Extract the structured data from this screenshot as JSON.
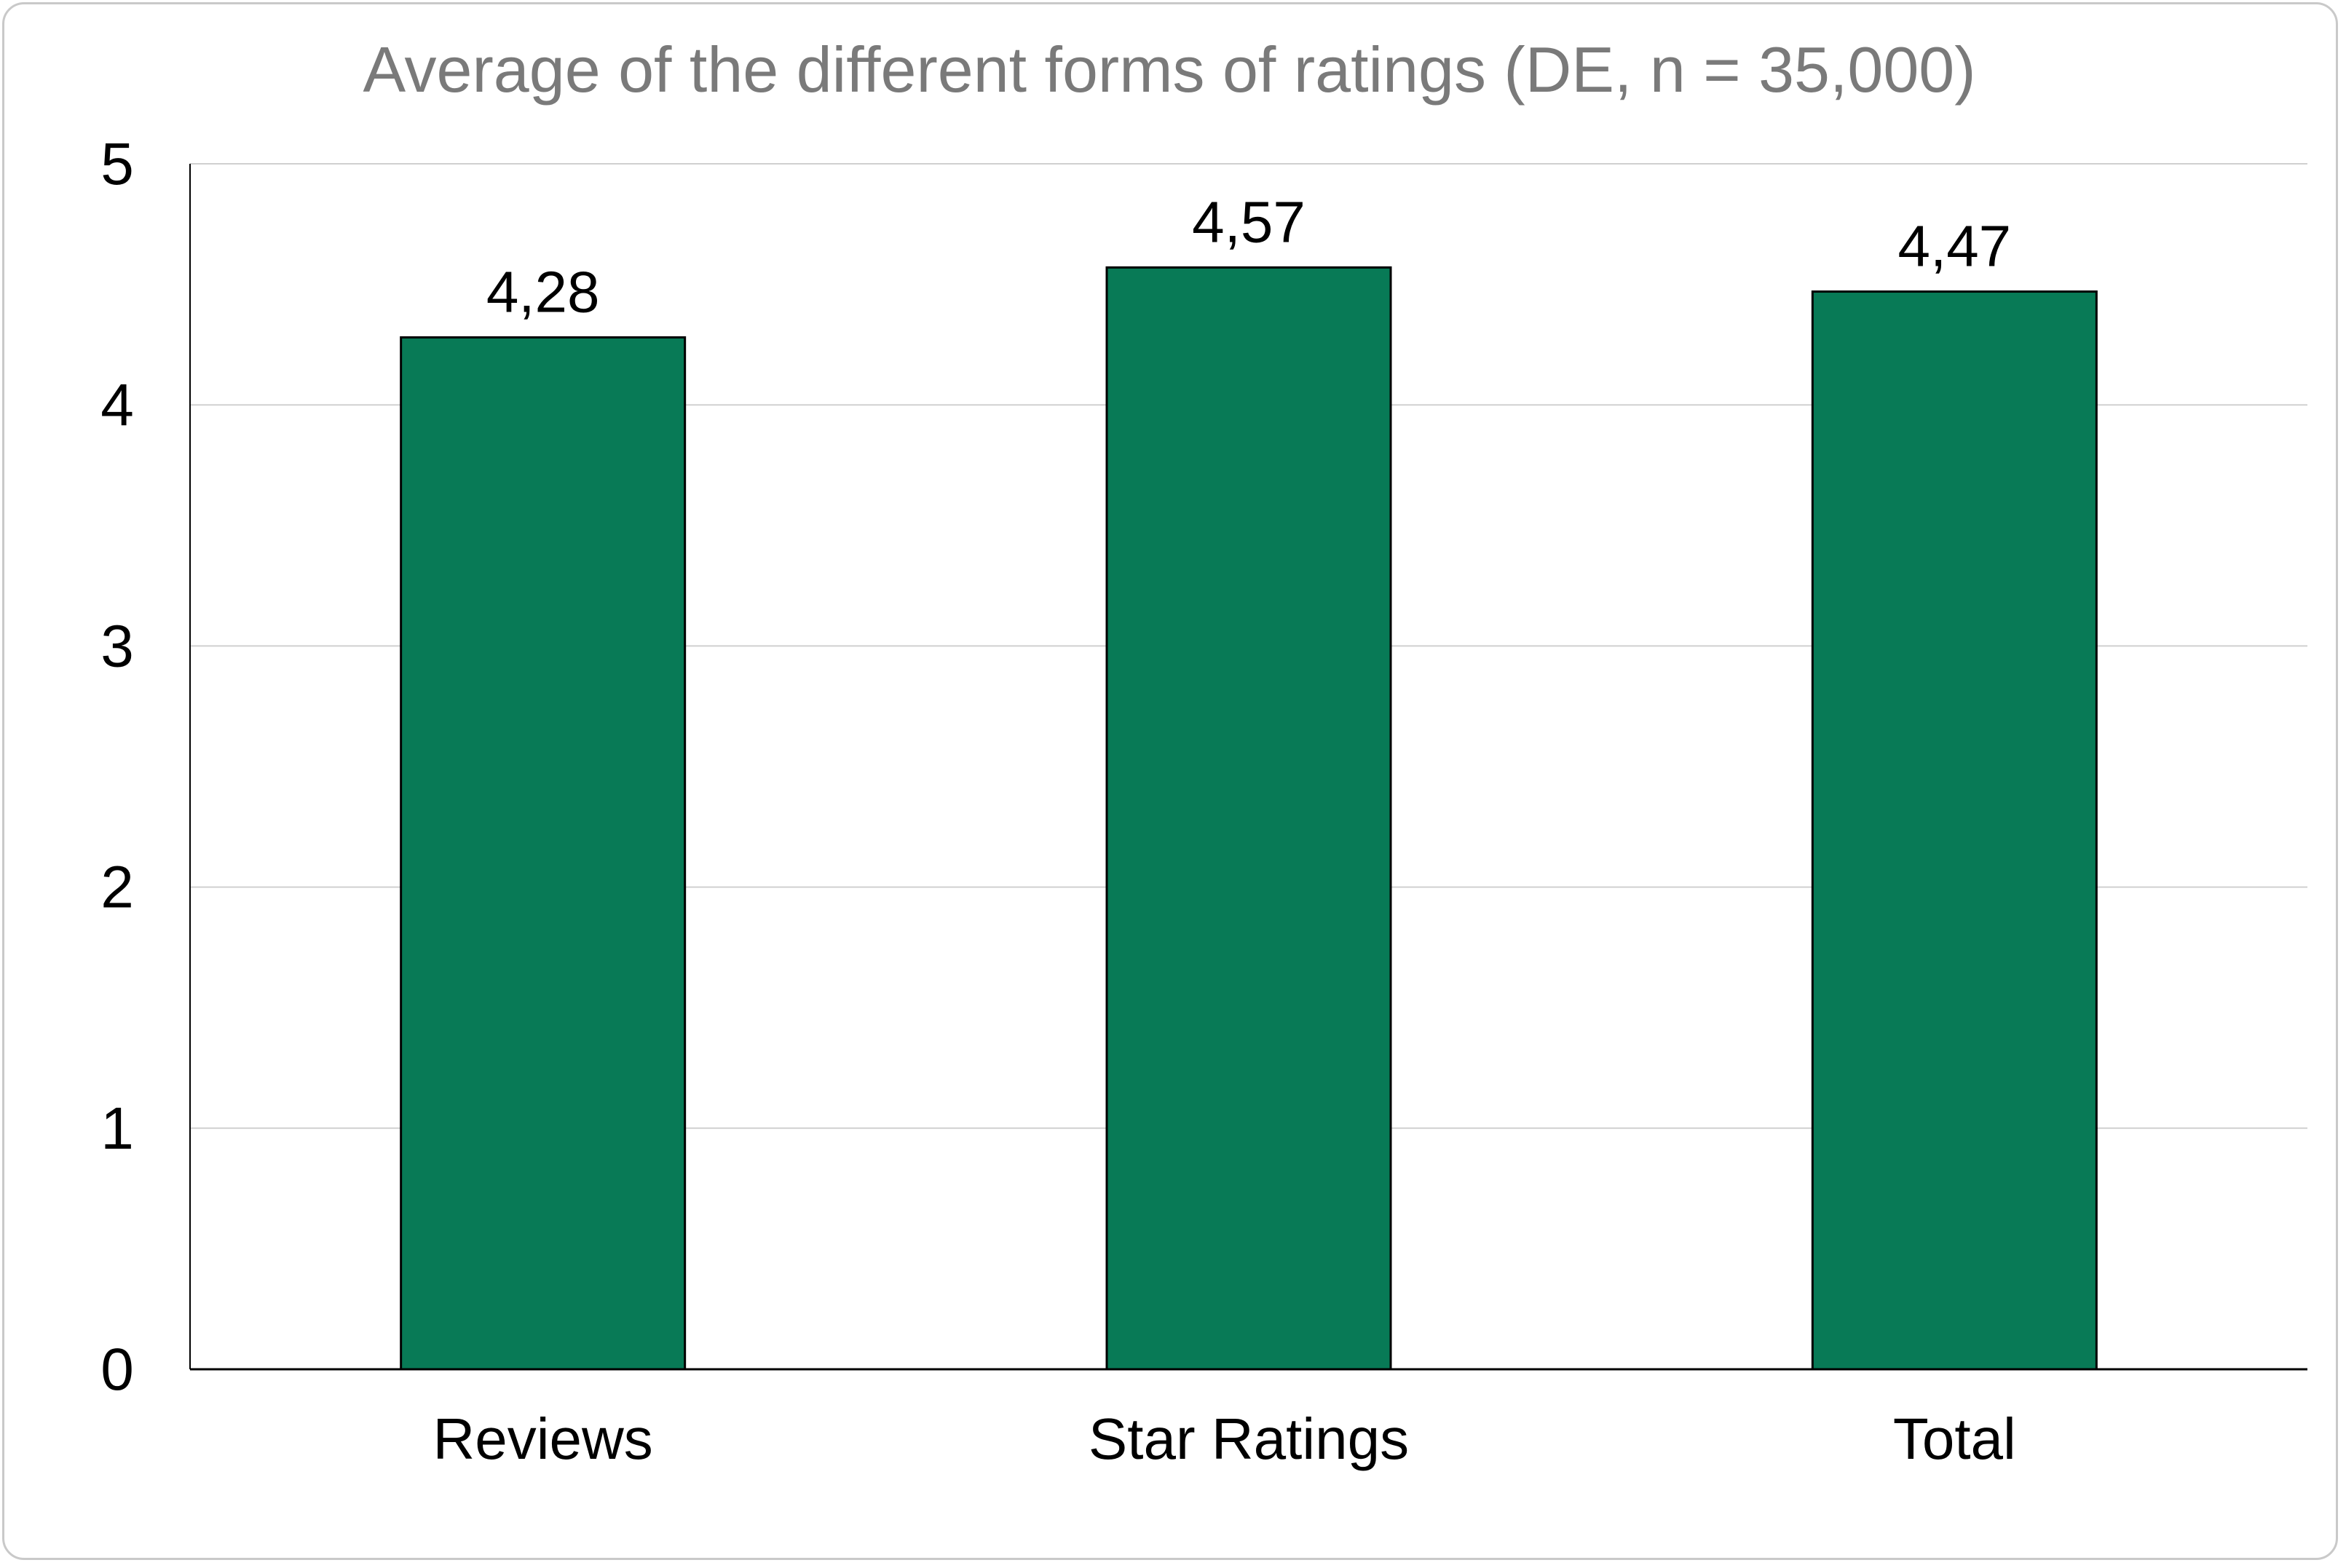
{
  "chart_data": {
    "type": "bar",
    "title": "Average of the different forms of ratings (DE, n = 35,000)",
    "xlabel": "",
    "ylabel": "",
    "categories": [
      "Reviews",
      "Star Ratings",
      "Total"
    ],
    "values": [
      4.28,
      4.57,
      4.47
    ],
    "value_labels": [
      "4,28",
      "4,57",
      "4,47"
    ],
    "ylim": [
      0,
      5
    ],
    "yticks": [
      0,
      1,
      2,
      3,
      4,
      5
    ],
    "ytick_labels": [
      "0",
      "1",
      "2",
      "3",
      "4",
      "5"
    ],
    "grid": true,
    "legend": "none",
    "colors": {
      "bar_fill": "#087a56",
      "bar_stroke": "#000000",
      "grid": "#d0d0d0",
      "axis": "#000000",
      "title": "#7a7a7a"
    }
  }
}
